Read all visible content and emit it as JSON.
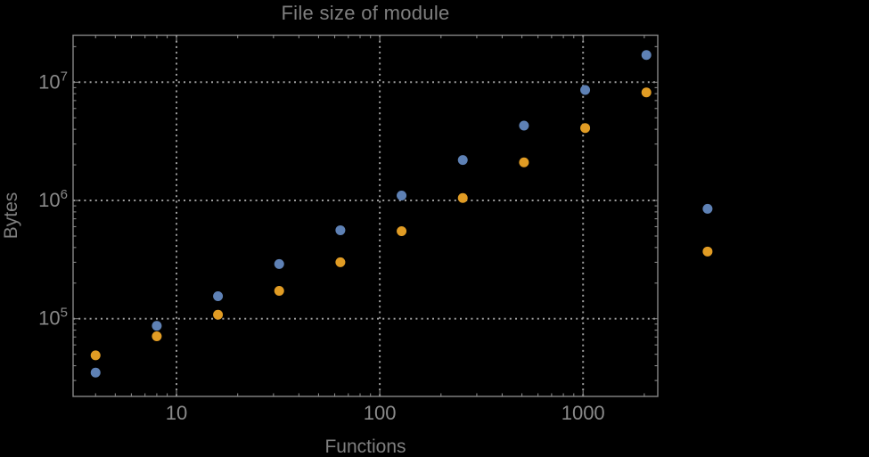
{
  "chart_data": {
    "type": "scatter",
    "title": "File size of module",
    "xlabel": "Functions",
    "ylabel": "Bytes",
    "x_scale": "log",
    "y_scale": "log",
    "xlim": [
      3.1,
      2330
    ],
    "ylim": [
      22000,
      25000000
    ],
    "grid": "dotted",
    "legend": "none",
    "x_ticks": [
      10,
      100,
      1000
    ],
    "x_tick_labels": [
      "10",
      "100",
      "1000"
    ],
    "y_ticks": [
      100000,
      1000000,
      10000000
    ],
    "y_tick_exponents": [
      5,
      6,
      7
    ],
    "x": [
      4,
      8,
      16,
      32,
      64,
      128,
      256,
      512,
      1024,
      2048,
      4096
    ],
    "series": [
      {
        "name": "series-1-blue",
        "color": "#5e81b5",
        "values": [
          35000,
          87000,
          155000,
          290000,
          560000,
          1100000,
          2200000,
          4300000,
          8600000,
          17000000,
          850000
        ]
      },
      {
        "name": "series-2-orange",
        "color": "#e19c24",
        "values": [
          49000,
          71000,
          108000,
          172000,
          300000,
          550000,
          1050000,
          2100000,
          4100000,
          8200000,
          370000
        ]
      }
    ],
    "style": {
      "background": "#000000",
      "frame_color": "#868686",
      "grid_color": "#9c9c9c",
      "tick_label_color": "#8a8a8a",
      "title_color": "#7f7f7f",
      "marker_radius": 5.5
    }
  }
}
